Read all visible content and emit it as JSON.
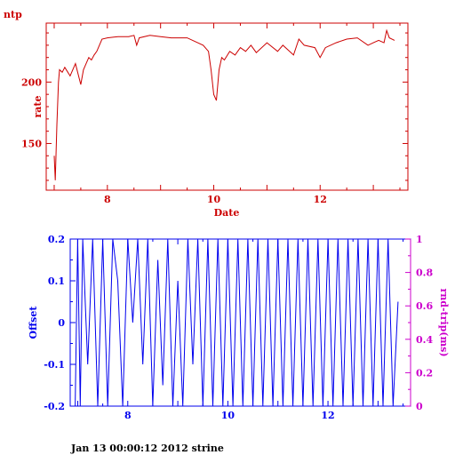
{
  "page_title": "ntp",
  "footer": "Jan 13 00:00:12 2012 strine",
  "colors": {
    "top": "#cc0000",
    "offset": "#0000ee",
    "rtt": "#cc00cc",
    "text": "#000000"
  },
  "chart_data": [
    {
      "type": "line",
      "title": "",
      "xlabel": "Date",
      "ylabel": "rate",
      "xlim": [
        6.85,
        13.65
      ],
      "ylim": [
        112,
        248
      ],
      "xticks": [
        8,
        10,
        12
      ],
      "yticks": [
        150,
        200
      ],
      "grid": false,
      "series": [
        {
          "x": [
            7.0,
            7.02,
            7.05,
            7.08,
            7.1,
            7.15,
            7.2,
            7.3,
            7.4,
            7.5,
            7.55,
            7.6,
            7.65,
            7.7,
            7.75,
            7.8,
            7.9,
            8.0,
            8.2,
            8.4,
            8.5,
            8.55,
            8.6,
            8.8,
            9.0,
            9.2,
            9.5,
            9.8,
            9.9,
            9.95,
            10.0,
            10.05,
            10.08,
            10.1,
            10.15,
            10.2,
            10.3,
            10.4,
            10.5,
            10.6,
            10.7,
            10.8,
            11.0,
            11.2,
            11.3,
            11.5,
            11.6,
            11.7,
            11.9,
            12.0,
            12.1,
            12.3,
            12.5,
            12.7,
            12.9,
            13.0,
            13.1,
            13.2,
            13.25,
            13.3,
            13.4
          ],
          "y": [
            140,
            120,
            165,
            200,
            210,
            208,
            212,
            205,
            215,
            198,
            210,
            215,
            220,
            218,
            222,
            225,
            235,
            236,
            237,
            237,
            238,
            230,
            236,
            238,
            237,
            236,
            236,
            230,
            225,
            210,
            190,
            185,
            200,
            210,
            220,
            218,
            225,
            222,
            228,
            225,
            230,
            224,
            232,
            225,
            230,
            222,
            235,
            230,
            228,
            220,
            228,
            232,
            235,
            236,
            230,
            232,
            234,
            232,
            242,
            236,
            234
          ]
        }
      ]
    },
    {
      "type": "line",
      "title": "",
      "xlabel": "",
      "ylabel": "Offset",
      "ylabel_right": "rnd-trip(ms)",
      "xlim": [
        6.85,
        13.65
      ],
      "ylim": [
        -0.2,
        0.2
      ],
      "ylim_right": [
        0,
        1
      ],
      "xticks": [
        8,
        10,
        12
      ],
      "yticks": [
        "-0.2",
        "-0.1",
        "0",
        "0.1",
        "0.2"
      ],
      "yticks_right": [
        "0",
        "0.2",
        "0.4",
        "0.6",
        "0.8",
        "1"
      ],
      "grid": false,
      "series": [
        {
          "x": [
            6.95,
            7.0,
            7.05,
            7.1,
            7.2,
            7.3,
            7.4,
            7.5,
            7.6,
            7.7,
            7.8,
            7.9,
            8.0,
            8.1,
            8.2,
            8.3,
            8.4,
            8.5,
            8.6,
            8.7,
            8.8,
            8.9,
            9.0,
            9.1,
            9.2,
            9.3,
            9.4,
            9.5,
            9.6,
            9.7,
            9.8,
            9.9,
            10.0,
            10.1,
            10.2,
            10.3,
            10.4,
            10.5,
            10.6,
            10.7,
            10.8,
            10.9,
            11.0,
            11.1,
            11.2,
            11.3,
            11.4,
            11.5,
            11.6,
            11.7,
            11.8,
            11.9,
            12.0,
            12.1,
            12.2,
            12.3,
            12.4,
            12.5,
            12.6,
            12.7,
            12.8,
            12.9,
            13.0,
            13.1,
            13.2,
            13.3,
            13.4
          ],
          "y": [
            -0.2,
            0.2,
            -0.2,
            0.2,
            -0.1,
            0.2,
            -0.2,
            0.2,
            -0.2,
            0.2,
            0.1,
            -0.2,
            0.2,
            0.0,
            0.2,
            -0.1,
            0.2,
            -0.2,
            0.15,
            -0.15,
            0.2,
            -0.2,
            0.1,
            -0.2,
            0.2,
            -0.1,
            0.2,
            -0.2,
            0.2,
            -0.2,
            0.2,
            -0.2,
            0.2,
            -0.2,
            0.2,
            -0.2,
            0.2,
            -0.2,
            0.2,
            -0.2,
            0.2,
            -0.2,
            0.2,
            -0.2,
            0.2,
            -0.2,
            0.2,
            -0.2,
            0.2,
            -0.2,
            0.2,
            -0.2,
            0.2,
            -0.2,
            0.2,
            -0.2,
            0.2,
            -0.2,
            0.2,
            -0.2,
            0.2,
            -0.2,
            0.2,
            -0.2,
            0.2,
            -0.2,
            0.05
          ]
        }
      ]
    }
  ]
}
